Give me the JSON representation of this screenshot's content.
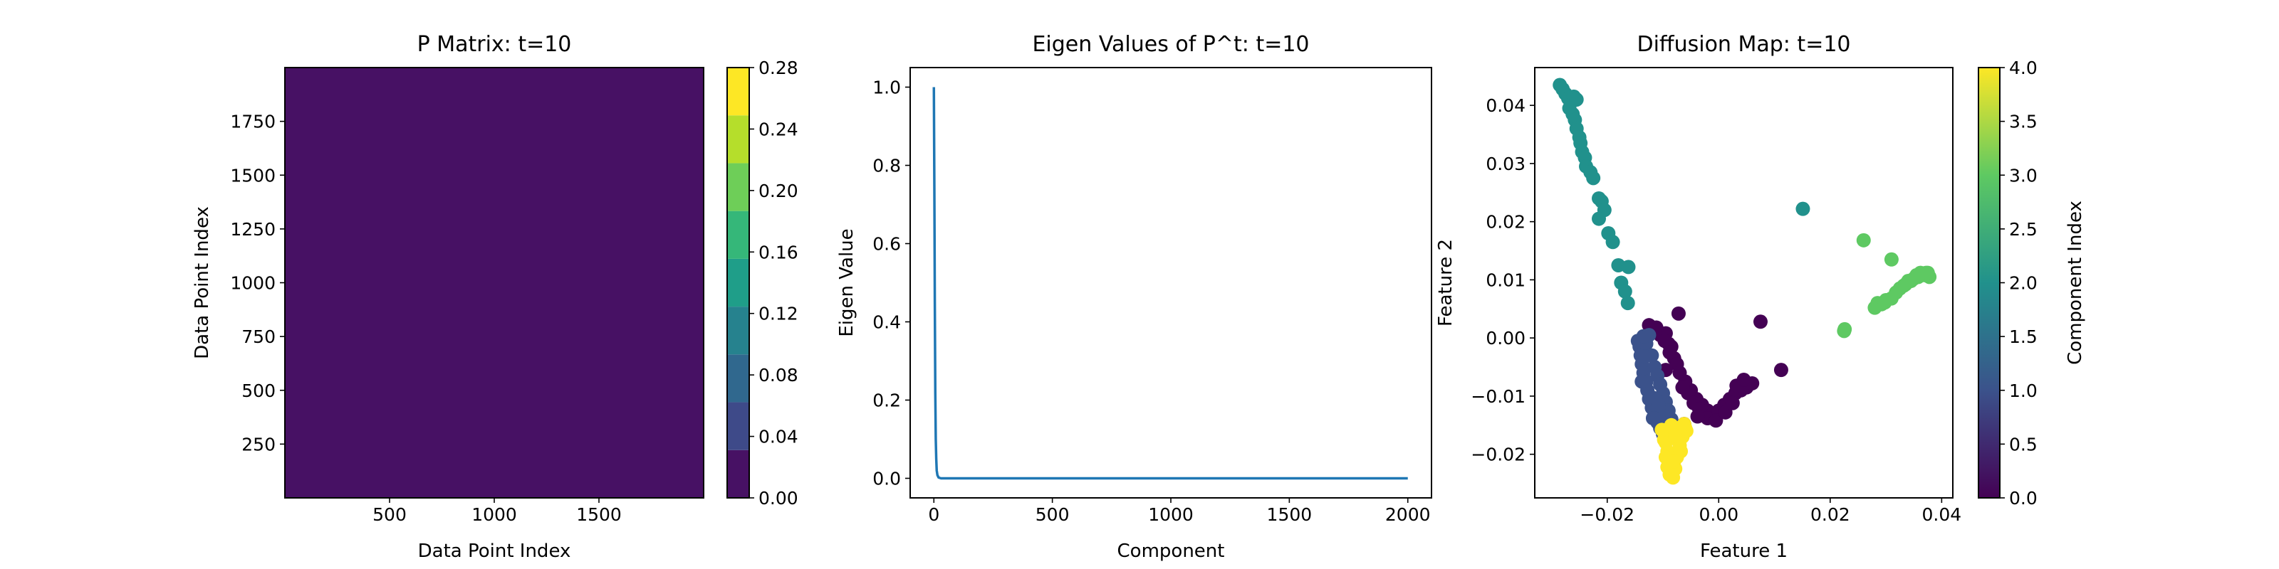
{
  "chart_data": [
    {
      "type": "heatmap",
      "title": "P Matrix: t=10",
      "xlabel": "Data Point Index",
      "ylabel": "Data Point Index",
      "xlim": [
        0,
        2000
      ],
      "ylim": [
        0,
        2000
      ],
      "x_ticks": [
        500,
        1000,
        1500
      ],
      "y_ticks": [
        250,
        500,
        750,
        1000,
        1250,
        1500,
        1750
      ],
      "fill_value": 0.0,
      "fill_color": "#471164",
      "colorbar": {
        "ticks": [
          0.0,
          0.04,
          0.08,
          0.12,
          0.16,
          0.2,
          0.24,
          0.28
        ],
        "tick_labels": [
          "0.00",
          "0.04",
          "0.08",
          "0.12",
          "0.16",
          "0.20",
          "0.24",
          "0.28"
        ],
        "levels": [
          "#471164",
          "#3e4a89",
          "#30688e",
          "#26828e",
          "#1f9e89",
          "#35b779",
          "#6ece58",
          "#b5de2b",
          "#fde725"
        ]
      }
    },
    {
      "type": "line",
      "title": "Eigen Values of P^t: t=10",
      "xlabel": "Component",
      "ylabel": "Eigen Value",
      "xlim": [
        -100,
        2100
      ],
      "ylim": [
        -0.05,
        1.05
      ],
      "x_ticks": [
        0,
        500,
        1000,
        1500,
        2000
      ],
      "y_ticks": [
        0.0,
        0.2,
        0.4,
        0.6,
        0.8,
        1.0
      ],
      "y_tick_labels": [
        "0.0",
        "0.2",
        "0.4",
        "0.6",
        "0.8",
        "1.0"
      ],
      "color": "#1f77b4",
      "series": [
        {
          "x": [
            0,
            2,
            4,
            6,
            8,
            10,
            12,
            15,
            20,
            30,
            50,
            100,
            500,
            1000,
            1500,
            2000
          ],
          "y": [
            1.0,
            0.75,
            0.45,
            0.22,
            0.1,
            0.05,
            0.02,
            0.008,
            0.002,
            0.0,
            0.0,
            0.0,
            0.0,
            0.0,
            0.0,
            0.0
          ]
        }
      ]
    },
    {
      "type": "scatter",
      "title": "Diffusion Map: t=10",
      "xlabel": "Feature 1",
      "ylabel": "Feature 2",
      "xlim": [
        -0.033,
        0.042
      ],
      "ylim": [
        -0.0275,
        0.0465
      ],
      "x_ticks": [
        -0.02,
        0.0,
        0.02,
        0.04
      ],
      "x_tick_labels": [
        "−0.02",
        "0.00",
        "0.02",
        "0.04"
      ],
      "y_ticks": [
        -0.02,
        -0.01,
        0.0,
        0.01,
        0.02,
        0.03,
        0.04
      ],
      "y_tick_labels": [
        "−0.02",
        "−0.01",
        "0.00",
        "0.01",
        "0.02",
        "0.03",
        "0.04"
      ],
      "colorbar": {
        "label": "Component Index",
        "ticks": [
          0.0,
          0.5,
          1.0,
          1.5,
          2.0,
          2.5,
          3.0,
          3.5,
          4.0
        ],
        "tick_labels": [
          "0.0",
          "0.5",
          "1.0",
          "1.5",
          "2.0",
          "2.5",
          "3.0",
          "3.5",
          "4.0"
        ],
        "gradient": [
          "#440154",
          "#3b528b",
          "#21918c",
          "#5ec962",
          "#fde725"
        ]
      },
      "series": [
        {
          "component": 2,
          "color": "#21918c",
          "points": [
            [
              -0.0285,
              0.0435
            ],
            [
              -0.028,
              0.0428
            ],
            [
              -0.0275,
              0.042
            ],
            [
              -0.027,
              0.0412
            ],
            [
              -0.0265,
              0.0405
            ],
            [
              -0.026,
              0.0415
            ],
            [
              -0.0255,
              0.041
            ],
            [
              -0.0268,
              0.0395
            ],
            [
              -0.0262,
              0.0385
            ],
            [
              -0.0258,
              0.0375
            ],
            [
              -0.0255,
              0.036
            ],
            [
              -0.025,
              0.0345
            ],
            [
              -0.0248,
              0.0335
            ],
            [
              -0.0245,
              0.032
            ],
            [
              -0.024,
              0.031
            ],
            [
              -0.0238,
              0.0295
            ],
            [
              -0.023,
              0.0285
            ],
            [
              -0.0225,
              0.0275
            ],
            [
              -0.0215,
              0.024
            ],
            [
              -0.021,
              0.0235
            ],
            [
              -0.0205,
              0.022
            ],
            [
              -0.0215,
              0.0205
            ],
            [
              -0.0198,
              0.018
            ],
            [
              -0.019,
              0.0165
            ],
            [
              -0.018,
              0.0125
            ],
            [
              -0.0162,
              0.0122
            ],
            [
              -0.0175,
              0.0095
            ],
            [
              -0.0168,
              0.008
            ],
            [
              -0.0163,
              0.006
            ],
            [
              0.0151,
              0.0222
            ]
          ]
        },
        {
          "component": 3,
          "color": "#5ec962",
          "points": [
            [
              0.026,
              0.0168
            ],
            [
              0.031,
              0.0135
            ],
            [
              0.0226,
              0.0015
            ],
            [
              0.0225,
              0.0012
            ],
            [
              0.028,
              0.0052
            ],
            [
              0.0285,
              0.006
            ],
            [
              0.0292,
              0.0058
            ],
            [
              0.03,
              0.0065
            ],
            [
              0.031,
              0.0068
            ],
            [
              0.0318,
              0.0078
            ],
            [
              0.0325,
              0.0085
            ],
            [
              0.0332,
              0.009
            ],
            [
              0.034,
              0.0098
            ],
            [
              0.035,
              0.0102
            ],
            [
              0.0358,
              0.0105
            ],
            [
              0.0365,
              0.011
            ],
            [
              0.037,
              0.0108
            ],
            [
              0.0375,
              0.0112
            ],
            [
              0.0378,
              0.0105
            ],
            [
              0.0372,
              0.0112
            ],
            [
              0.0362,
              0.0112
            ],
            [
              0.0355,
              0.0108
            ],
            [
              0.0345,
              0.0098
            ],
            [
              0.0335,
              0.0092
            ],
            [
              0.0298,
              0.0061
            ]
          ]
        },
        {
          "component": 0,
          "color": "#440154",
          "points": [
            [
              -0.0105,
              0.0005
            ],
            [
              -0.0095,
              0.0008
            ],
            [
              -0.009,
              -0.001
            ],
            [
              -0.0085,
              -0.0015
            ],
            [
              -0.008,
              -0.0035
            ],
            [
              -0.0075,
              -0.0045
            ],
            [
              -0.007,
              -0.006
            ],
            [
              -0.006,
              -0.0075
            ],
            [
              -0.005,
              -0.009
            ],
            [
              -0.004,
              -0.0105
            ],
            [
              -0.003,
              -0.0115
            ],
            [
              -0.002,
              -0.0125
            ],
            [
              -0.001,
              -0.013
            ],
            [
              0.0,
              -0.0125
            ],
            [
              0.001,
              -0.0115
            ],
            [
              0.002,
              -0.0105
            ],
            [
              0.003,
              -0.0095
            ],
            [
              0.004,
              -0.009
            ],
            [
              0.005,
              -0.0085
            ],
            [
              0.006,
              -0.0078
            ],
            [
              0.0032,
              -0.0082
            ],
            [
              0.0045,
              -0.0072
            ],
            [
              0.0075,
              0.0028
            ],
            [
              0.0112,
              -0.0055
            ],
            [
              -0.0125,
              0.0022
            ],
            [
              -0.0112,
              0.0018
            ],
            [
              -0.0097,
              -0.0005
            ],
            [
              -0.0055,
              -0.0095
            ],
            [
              -0.0045,
              -0.0112
            ],
            [
              -0.0035,
              -0.0122
            ],
            [
              -0.002,
              -0.0138
            ],
            [
              -0.0005,
              -0.0142
            ],
            [
              0.0012,
              -0.0128
            ],
            [
              0.0025,
              -0.0112
            ],
            [
              -0.0072,
              0.0042
            ],
            [
              -0.0062,
              -0.0148
            ],
            [
              -0.0038,
              -0.0135
            ],
            [
              -0.0065,
              -0.0085
            ],
            [
              -0.0095,
              -0.0055
            ],
            [
              -0.0088,
              -0.0025
            ]
          ]
        },
        {
          "component": 1,
          "color": "#3b528b",
          "points": [
            [
              -0.0145,
              -0.0005
            ],
            [
              -0.0142,
              -0.0015
            ],
            [
              -0.014,
              -0.003
            ],
            [
              -0.0138,
              -0.0045
            ],
            [
              -0.0135,
              -0.006
            ],
            [
              -0.013,
              -0.0075
            ],
            [
              -0.0128,
              -0.009
            ],
            [
              -0.0125,
              -0.0105
            ],
            [
              -0.012,
              -0.012
            ],
            [
              -0.0115,
              -0.013
            ],
            [
              -0.011,
              -0.0145
            ],
            [
              -0.0105,
              -0.0155
            ],
            [
              -0.01,
              -0.0165
            ],
            [
              -0.013,
              -0.001
            ],
            [
              -0.012,
              -0.003
            ],
            [
              -0.0115,
              -0.005
            ],
            [
              -0.011,
              -0.0065
            ],
            [
              -0.0105,
              -0.008
            ],
            [
              -0.01,
              -0.0095
            ],
            [
              -0.0095,
              -0.011
            ],
            [
              -0.009,
              -0.0125
            ],
            [
              -0.0085,
              -0.014
            ],
            [
              -0.0125,
              0.0005
            ],
            [
              -0.0135,
              0.0003
            ],
            [
              -0.012,
              -0.0102
            ],
            [
              -0.0132,
              -0.0032
            ],
            [
              -0.0118,
              -0.0138
            ],
            [
              -0.0098,
              -0.0135
            ],
            [
              -0.0108,
              -0.0115
            ],
            [
              -0.0138,
              -0.0075
            ]
          ]
        },
        {
          "component": 4,
          "color": "#fde725",
          "points": [
            [
              -0.0085,
              -0.015
            ],
            [
              -0.009,
              -0.0165
            ],
            [
              -0.0095,
              -0.018
            ],
            [
              -0.0092,
              -0.0195
            ],
            [
              -0.009,
              -0.021
            ],
            [
              -0.0088,
              -0.022
            ],
            [
              -0.0085,
              -0.023
            ],
            [
              -0.0082,
              -0.024
            ],
            [
              -0.0078,
              -0.0225
            ],
            [
              -0.0075,
              -0.0205
            ],
            [
              -0.007,
              -0.0185
            ],
            [
              -0.0065,
              -0.017
            ],
            [
              -0.006,
              -0.0155
            ],
            [
              -0.0058,
              -0.016
            ],
            [
              -0.0075,
              -0.0155
            ],
            [
              -0.0098,
              -0.0175
            ],
            [
              -0.0095,
              -0.0205
            ],
            [
              -0.0088,
              -0.0235
            ],
            [
              -0.0072,
              -0.0178
            ],
            [
              -0.0068,
              -0.0195
            ],
            [
              -0.0062,
              -0.0148
            ],
            [
              -0.0102,
              -0.0158
            ],
            [
              -0.0092,
              -0.0222
            ],
            [
              -0.008,
              -0.0212
            ],
            [
              -0.0078,
              -0.0168
            ]
          ]
        }
      ]
    }
  ]
}
